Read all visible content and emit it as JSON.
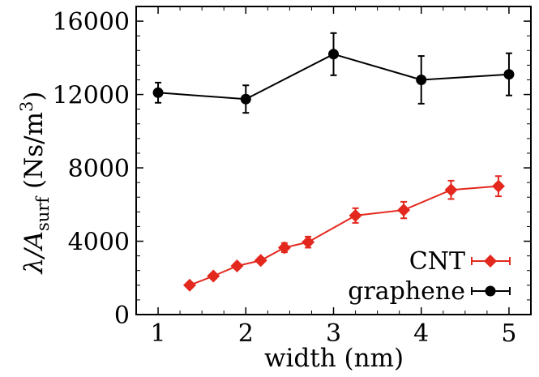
{
  "chart_data": {
    "type": "line",
    "xlabel": "width (nm)",
    "ylabel": {
      "main": "λ/A",
      "sub": "surf",
      "unit_open": " (Ns/m",
      "unit_sup": "3",
      "unit_close": ")"
    },
    "xlim": [
      0.75,
      5.25
    ],
    "ylim": [
      0,
      16800
    ],
    "xticks": [
      1,
      2,
      3,
      4,
      5
    ],
    "yticks": [
      0,
      4000,
      8000,
      12000,
      16000
    ],
    "xtick_labels": [
      "1",
      "2",
      "3",
      "4",
      "5"
    ],
    "ytick_labels": [
      "0",
      "4000",
      "8000",
      "12000",
      "16000"
    ],
    "grid": false,
    "legend_position": "bottom-right",
    "series": [
      {
        "name": "CNT",
        "color": "#e3281e",
        "marker": "diamond",
        "x": [
          1.36,
          1.63,
          1.9,
          2.17,
          2.44,
          2.71,
          3.25,
          3.8,
          4.34,
          4.88
        ],
        "y": [
          1600,
          2100,
          2650,
          2950,
          3650,
          3950,
          5400,
          5700,
          6800,
          7000
        ],
        "err": [
          120,
          150,
          150,
          150,
          250,
          300,
          400,
          450,
          500,
          550
        ]
      },
      {
        "name": "graphene",
        "color": "#000000",
        "marker": "circle",
        "x": [
          1,
          2,
          3,
          4,
          5
        ],
        "y": [
          12100,
          11750,
          14200,
          12800,
          13100
        ],
        "err": [
          550,
          750,
          1150,
          1300,
          1150
        ]
      }
    ]
  }
}
